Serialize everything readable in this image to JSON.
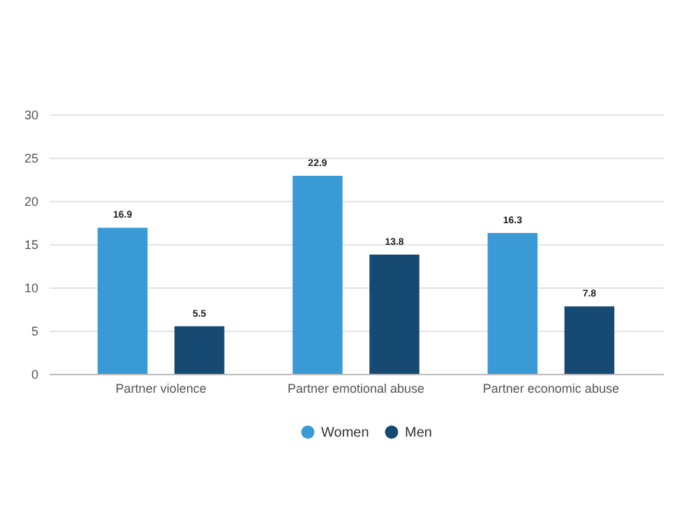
{
  "chart_data": {
    "type": "bar",
    "categories": [
      "Partner violence",
      "Partner emotional abuse",
      "Partner economic abuse"
    ],
    "series": [
      {
        "name": "Women",
        "color": "#3a9ad6",
        "values": [
          16.9,
          22.9,
          16.3
        ]
      },
      {
        "name": "Men",
        "color": "#164a73",
        "values": [
          5.5,
          13.8,
          7.8
        ]
      }
    ],
    "ylim": [
      0,
      30
    ],
    "yticks": [
      0,
      5,
      10,
      15,
      20,
      25,
      30
    ],
    "grid": "y",
    "legend": "bottom",
    "data_labels": true
  }
}
